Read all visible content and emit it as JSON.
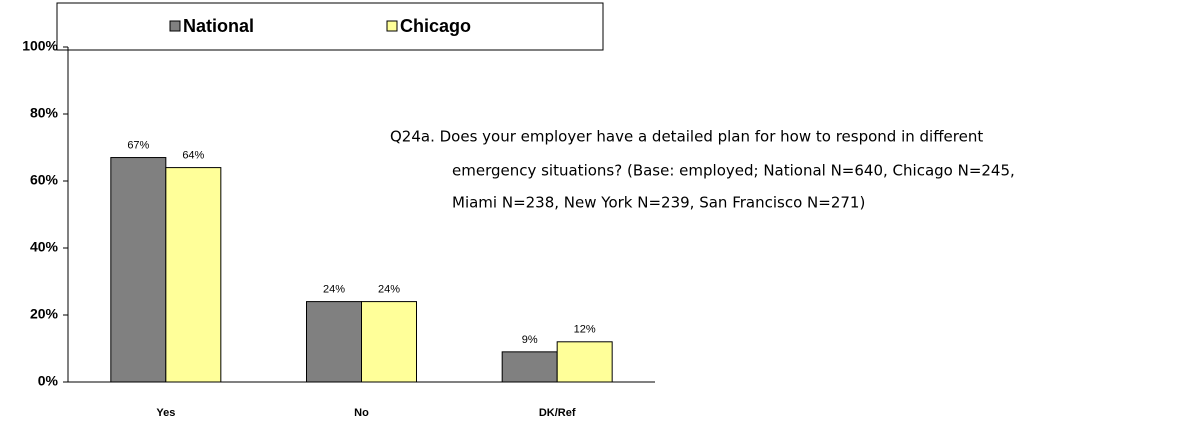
{
  "chart_data": {
    "type": "bar",
    "categories": [
      "Yes",
      "No",
      "DK/Ref"
    ],
    "series": [
      {
        "name": "National",
        "color": "#808080",
        "values": [
          67,
          24,
          9
        ],
        "value_labels": [
          "67%",
          "24%",
          "9%"
        ]
      },
      {
        "name": "Chicago",
        "color": "#ffff99",
        "values": [
          64,
          24,
          12
        ],
        "value_labels": [
          "64%",
          "24%",
          "12%"
        ]
      }
    ],
    "ylim": [
      0,
      100
    ],
    "yticks": [
      {
        "value": 0,
        "label": "0%"
      },
      {
        "value": 20,
        "label": "20%"
      },
      {
        "value": 40,
        "label": "40%"
      },
      {
        "value": 60,
        "label": "60%"
      },
      {
        "value": 80,
        "label": "80%"
      },
      {
        "value": 100,
        "label": "100%"
      }
    ],
    "legend": "top",
    "annotation": [
      "Q24a. Does your employer have a detailed plan for how to respond in different",
      "emergency situations? (Base: employed; National N=640, Chicago N=245,",
      "Miami N=238, New York N=239, San Francisco N=271)"
    ]
  }
}
